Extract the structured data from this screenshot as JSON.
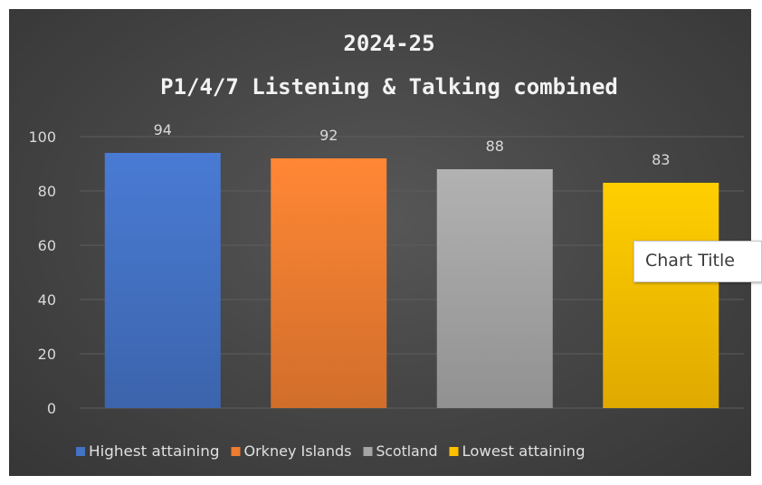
{
  "chart_data": {
    "type": "bar",
    "title": "2024-25",
    "subtitle": "P1/4/7 Listening & Talking combined",
    "categories": [
      "Highest attaining",
      "Orkney Islands",
      "Scotland",
      "Lowest attaining"
    ],
    "values": [
      94,
      92,
      88,
      83
    ],
    "data_labels": [
      "94",
      "92",
      "88",
      "83"
    ],
    "colors": [
      "#4472c4",
      "#ed7d31",
      "#a5a5a5",
      "#ffc000"
    ],
    "legend": [
      "Highest attaining",
      "Orkney Islands",
      "Scotland",
      "Lowest attaining"
    ],
    "legend_position": "bottom",
    "ylim": [
      0,
      100
    ],
    "yticks": [
      "0",
      "20",
      "40",
      "60",
      "80",
      "100"
    ],
    "grid": true,
    "xlabel": "",
    "ylabel": ""
  },
  "tooltip": {
    "text": "Chart Title"
  }
}
